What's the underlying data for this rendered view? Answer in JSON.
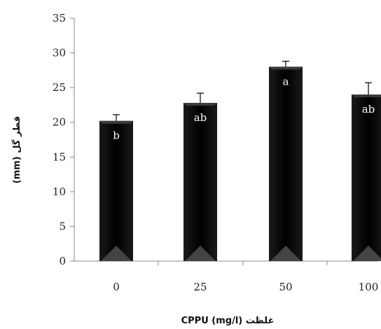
{
  "chart_data": {
    "type": "bar",
    "categories": [
      "0",
      "25",
      "50",
      "100"
    ],
    "values": [
      20.2,
      22.8,
      28.0,
      24.0
    ],
    "errors": [
      0.9,
      1.4,
      0.8,
      1.7
    ],
    "labels": [
      "b",
      "ab",
      "a",
      "ab"
    ],
    "xlabel": "غلظت CPPU (mg/l)",
    "ylabel": "قطر گل (mm)",
    "ylim": [
      0,
      35
    ],
    "yticks": [
      "0",
      "5",
      "10",
      "15",
      "20",
      "25",
      "30",
      "35"
    ],
    "grid": false,
    "bar_color": "#000000"
  }
}
